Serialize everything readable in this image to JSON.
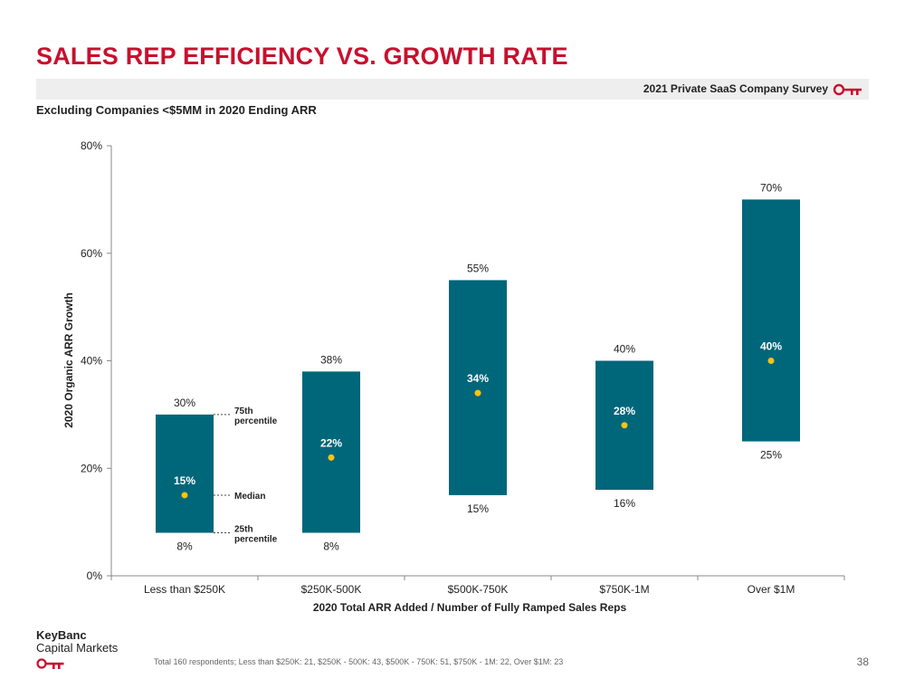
{
  "header": {
    "title": "SALES REP EFFICIENCY VS. GROWTH RATE",
    "survey_label": "2021 Private SaaS Company Survey",
    "subtitle": "Excluding Companies <$5MM in 2020 Ending ARR"
  },
  "colors": {
    "accent": "#c8102e",
    "bar": "#00667a",
    "median": "#ffc20e",
    "band": "#eeeeee"
  },
  "chart_data": {
    "type": "bar",
    "subtype": "floating-range-with-median",
    "categories": [
      "Less than $250K",
      "$250K-500K",
      "$500K-750K",
      "$750K-1M",
      "Over $1M"
    ],
    "p25": [
      8,
      8,
      15,
      16,
      25
    ],
    "p75": [
      30,
      38,
      55,
      40,
      70
    ],
    "median": [
      15,
      22,
      34,
      28,
      40
    ],
    "p25_labels": [
      "8%",
      "8%",
      "15%",
      "16%",
      "25%"
    ],
    "p75_labels": [
      "30%",
      "38%",
      "55%",
      "40%",
      "70%"
    ],
    "median_labels": [
      "15%",
      "22%",
      "34%",
      "28%",
      "40%"
    ],
    "ylim": [
      0,
      80
    ],
    "yticks": [
      0,
      20,
      40,
      60,
      80
    ],
    "ytick_labels": [
      "0%",
      "20%",
      "40%",
      "60%",
      "80%"
    ],
    "xlabel": "2020 Total ARR Added / Number of Fully Ramped Sales Reps",
    "ylabel": "2020 Organic ARR Growth",
    "annotations": {
      "p75": "75th percentile",
      "median": "Median",
      "p25": "25th percentile"
    },
    "grid": false
  },
  "footer": {
    "brand_name": "KeyBanc",
    "brand_sub": "Capital Markets",
    "footnote": "Total 160 respondents; Less than $250K: 21, $250K - 500K: 43, $500K - 750K: 51, $750K - 1M: 22, Over $1M: 23",
    "page_number": "38"
  }
}
